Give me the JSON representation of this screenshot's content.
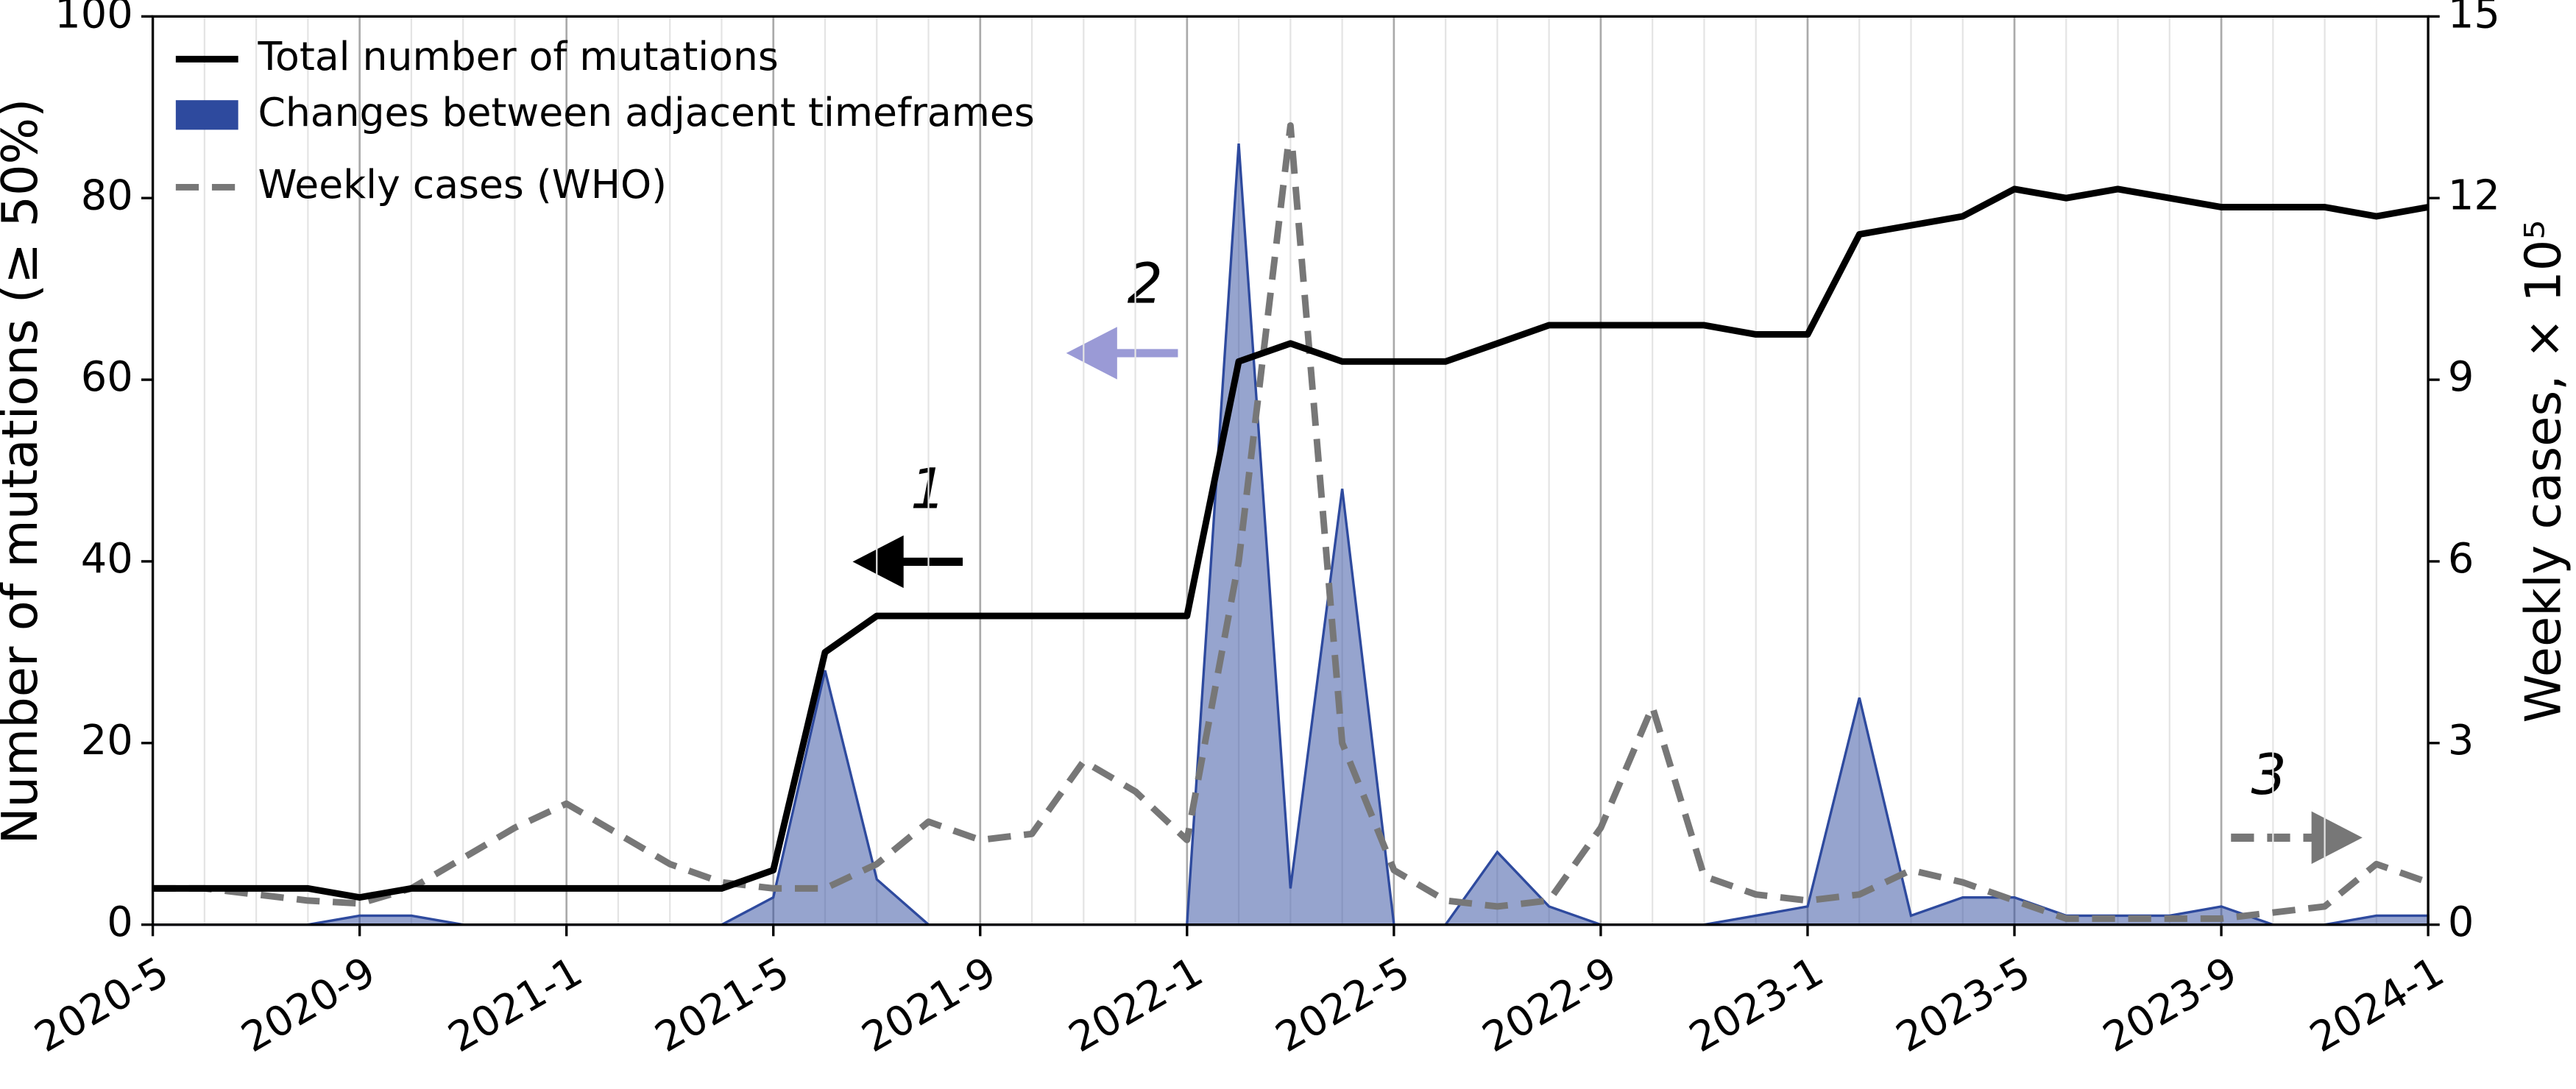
{
  "chart_data": {
    "type": "line",
    "ylabel": "Number of mutations (≥ 50%)",
    "y2label": "Weekly cases, × 10⁵",
    "x": [
      "2020-5",
      "2020-6",
      "2020-7",
      "2020-8",
      "2020-9",
      "2020-10",
      "2020-11",
      "2020-12",
      "2021-1",
      "2021-2",
      "2021-3",
      "2021-4",
      "2021-5",
      "2021-6",
      "2021-7",
      "2021-8",
      "2021-9",
      "2021-10",
      "2021-11",
      "2021-12",
      "2022-1",
      "2022-2",
      "2022-3",
      "2022-4",
      "2022-5",
      "2022-6",
      "2022-7",
      "2022-8",
      "2022-9",
      "2022-10",
      "2022-11",
      "2022-12",
      "2023-1",
      "2023-2",
      "2023-3",
      "2023-4",
      "2023-5",
      "2023-6",
      "2023-7",
      "2023-8",
      "2023-9",
      "2023-10",
      "2023-11",
      "2023-12",
      "2024-1"
    ],
    "xticks": [
      "2020-5",
      "2020-9",
      "2021-1",
      "2021-5",
      "2021-9",
      "2022-1",
      "2022-5",
      "2022-9",
      "2023-1",
      "2023-5",
      "2023-9",
      "2024-1"
    ],
    "ylim": [
      0,
      100
    ],
    "yticks": [
      0,
      20,
      40,
      60,
      80,
      100
    ],
    "y2lim": [
      0,
      15
    ],
    "y2ticks": [
      0,
      3,
      6,
      9,
      12,
      15
    ],
    "legend": "upper left",
    "grid": "x",
    "series": [
      {
        "name": "Total number of mutations",
        "color": "#000000",
        "style": "solid",
        "values": [
          4,
          4,
          4,
          4,
          3,
          4,
          4,
          4,
          4,
          4,
          4,
          4,
          6,
          30,
          34,
          34,
          34,
          34,
          34,
          34,
          34,
          62,
          64,
          62,
          62,
          62,
          64,
          66,
          66,
          66,
          66,
          65,
          65,
          76,
          77,
          78,
          81,
          80,
          81,
          80,
          79,
          79,
          79,
          78,
          79
        ]
      },
      {
        "name": "Changes between adjacent timeframes",
        "color": "#2e4a9e",
        "style": "area",
        "values": [
          0,
          0,
          0,
          0,
          1,
          1,
          0,
          0,
          0,
          0,
          0,
          0,
          3,
          28,
          5,
          0,
          0,
          0,
          0,
          0,
          0,
          86,
          4,
          48,
          0,
          0,
          8,
          2,
          0,
          0,
          0,
          1,
          2,
          25,
          1,
          3,
          3,
          1,
          1,
          1,
          2,
          0,
          0,
          1,
          1
        ]
      },
      {
        "name": "Weekly cases (WHO)",
        "color": "#777777",
        "style": "dashed",
        "axis": "y2",
        "values": [
          0.6,
          0.6,
          0.5,
          0.4,
          0.35,
          0.6,
          1.1,
          1.6,
          2.0,
          1.5,
          1.0,
          0.7,
          0.6,
          0.6,
          1.0,
          1.7,
          1.4,
          1.5,
          2.7,
          2.2,
          1.4,
          6.0,
          13.2,
          3.0,
          0.9,
          0.4,
          0.3,
          0.4,
          1.6,
          3.6,
          0.8,
          0.5,
          0.4,
          0.5,
          0.9,
          0.7,
          0.4,
          0.1,
          0.1,
          0.1,
          0.1,
          0.2,
          0.3,
          1.0,
          0.7
        ]
      }
    ],
    "annotations": [
      "1",
      "2",
      "3"
    ]
  }
}
